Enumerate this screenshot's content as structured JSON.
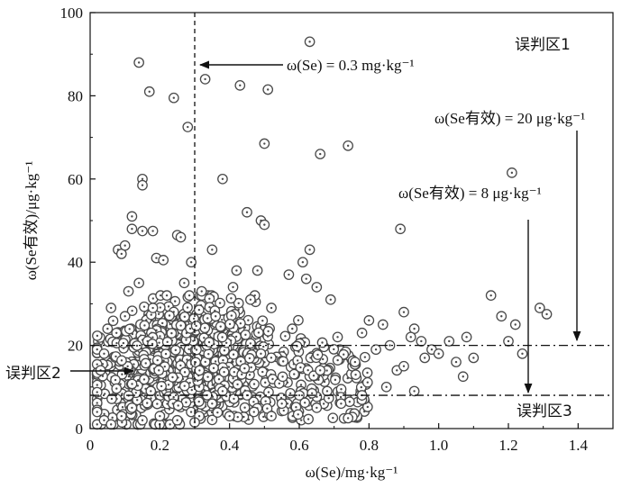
{
  "chart_data": {
    "type": "scatter",
    "title": "",
    "xlabel": "ω(Se)/mg·kg⁻¹",
    "ylabel": "ω(Se有效)/μg·kg⁻¹",
    "xlim": [
      0,
      1.5
    ],
    "ylim": [
      0,
      100
    ],
    "x_ticks": [
      "0",
      "0.2",
      "0.4",
      "0.6",
      "0.8",
      "1.0",
      "1.2",
      "1.4"
    ],
    "y_ticks": [
      "0",
      "20",
      "40",
      "60",
      "80",
      "100"
    ],
    "marker": "circle-dot",
    "colors": {
      "marker": "#4a4a4a",
      "axis": "#111111"
    },
    "reference_lines": [
      {
        "orientation": "vertical",
        "value": 0.3,
        "style": "dashed",
        "label": "ω(Se) = 0.3 mg·kg⁻¹"
      },
      {
        "orientation": "horizontal",
        "value": 20,
        "style": "dashdot",
        "label": "ω(Se有效) = 20 μg·kg⁻¹"
      },
      {
        "orientation": "horizontal",
        "value": 8,
        "style": "dashdot",
        "label": "ω(Se有效) = 8 μg·kg⁻¹"
      }
    ],
    "regions": [
      {
        "name": "zone-1",
        "label": "误判区1"
      },
      {
        "name": "zone-2",
        "label": "误判区2"
      },
      {
        "name": "zone-3",
        "label": "误判区3"
      }
    ],
    "outlier_points": [
      [
        0.14,
        88
      ],
      [
        0.17,
        81
      ],
      [
        0.24,
        79.5
      ],
      [
        0.28,
        72.5
      ],
      [
        0.33,
        84
      ],
      [
        0.43,
        82.5
      ],
      [
        0.51,
        81.5
      ],
      [
        0.63,
        93
      ],
      [
        0.15,
        60
      ],
      [
        0.15,
        58.5
      ],
      [
        0.38,
        60
      ],
      [
        0.5,
        68.5
      ],
      [
        0.66,
        66
      ],
      [
        0.74,
        68
      ],
      [
        1.21,
        61.5
      ],
      [
        0.89,
        48
      ],
      [
        0.45,
        52
      ],
      [
        0.49,
        50
      ],
      [
        0.5,
        49
      ],
      [
        0.25,
        46.5
      ],
      [
        0.26,
        46
      ],
      [
        0.63,
        43
      ],
      [
        0.35,
        43
      ],
      [
        0.12,
        51
      ],
      [
        0.12,
        48
      ],
      [
        0.15,
        47.5
      ],
      [
        0.18,
        47.5
      ],
      [
        0.19,
        41
      ],
      [
        0.21,
        40.5
      ],
      [
        0.08,
        43
      ],
      [
        0.09,
        42
      ],
      [
        0.1,
        44
      ],
      [
        0.29,
        40
      ],
      [
        0.42,
        38
      ],
      [
        0.48,
        38
      ],
      [
        0.57,
        37
      ],
      [
        0.61,
        40
      ],
      [
        0.62,
        36
      ],
      [
        0.65,
        34
      ],
      [
        0.69,
        31
      ],
      [
        0.78,
        23
      ],
      [
        0.8,
        26
      ],
      [
        0.84,
        25
      ],
      [
        0.86,
        20
      ],
      [
        0.9,
        28
      ],
      [
        0.93,
        24
      ],
      [
        0.95,
        21
      ],
      [
        0.98,
        19
      ],
      [
        1.0,
        18
      ],
      [
        1.03,
        21
      ],
      [
        1.05,
        16
      ],
      [
        1.08,
        22
      ],
      [
        1.1,
        17
      ],
      [
        1.15,
        32
      ],
      [
        1.18,
        27
      ],
      [
        1.2,
        21
      ],
      [
        1.22,
        25
      ],
      [
        1.24,
        18
      ],
      [
        1.29,
        29
      ],
      [
        1.31,
        27.5
      ],
      [
        1.07,
        12.5
      ],
      [
        0.93,
        9
      ],
      [
        0.85,
        10
      ],
      [
        0.88,
        14
      ],
      [
        0.9,
        15
      ],
      [
        0.72,
        6
      ],
      [
        0.68,
        9
      ],
      [
        0.6,
        8
      ],
      [
        0.55,
        6
      ],
      [
        0.45,
        8
      ],
      [
        0.38,
        9
      ],
      [
        0.35,
        6
      ],
      [
        0.92,
        22
      ],
      [
        0.96,
        17
      ],
      [
        0.82,
        19
      ],
      [
        0.76,
        16
      ],
      [
        0.71,
        22
      ],
      [
        0.66,
        14
      ],
      [
        0.58,
        24
      ],
      [
        0.52,
        29
      ],
      [
        0.46,
        31
      ],
      [
        0.41,
        34
      ],
      [
        0.36,
        27
      ],
      [
        0.32,
        33
      ],
      [
        0.27,
        35
      ],
      [
        0.22,
        32
      ],
      [
        0.18,
        29
      ],
      [
        0.14,
        35
      ],
      [
        0.11,
        33
      ],
      [
        0.06,
        29
      ],
      [
        0.04,
        18
      ],
      [
        0.03,
        14
      ],
      [
        0.05,
        24
      ],
      [
        0.1,
        27
      ],
      [
        0.02,
        4
      ],
      [
        0.04,
        2
      ],
      [
        0.06,
        1
      ],
      [
        0.09,
        3
      ],
      [
        0.12,
        5
      ],
      [
        0.15,
        2
      ],
      [
        0.2,
        3
      ],
      [
        0.25,
        2
      ],
      [
        0.3,
        1.5
      ],
      [
        0.4,
        3
      ],
      [
        0.47,
        4
      ],
      [
        0.52,
        3
      ],
      [
        0.65,
        5
      ],
      [
        0.74,
        2.5
      ]
    ],
    "dense_cloud": {
      "x": [
        0.02,
        0.6
      ],
      "y": [
        1,
        32
      ],
      "center": [
        0.25,
        16
      ],
      "point_count": 900
    }
  }
}
